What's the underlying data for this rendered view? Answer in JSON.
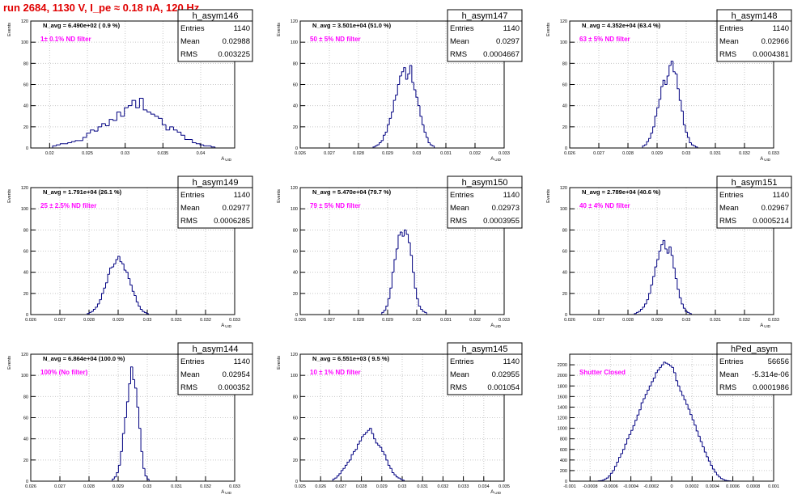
{
  "header": {
    "title": "run 2684,  1130 V, I_pe ≈ 0.18 nA, 120 Hz"
  },
  "colors": {
    "histogram_line": "#000080",
    "filter_text": "#ff00ff",
    "title_text": "#e00000",
    "grid": "#c8c8c8"
  },
  "chart_data": [
    {
      "type": "bar",
      "name": "h_asym146",
      "stats": {
        "entries_label": "Entries",
        "entries": "1140",
        "mean_label": "Mean",
        "mean": "0.02988",
        "rms_label": "RMS",
        "rms": "0.003225"
      },
      "n_avg": "N_avg = 6.490e+02 ( 0.9 %)",
      "filter": "1± 0.1% ND filter",
      "xlabel": "A_UID",
      "ylabel": "Events",
      "xlim": [
        0.0175,
        0.0445
      ],
      "ylim": [
        0,
        120
      ],
      "xticks": [
        0.02,
        0.025,
        0.03,
        0.035,
        0.04
      ],
      "xticklabels": [
        "0.02",
        "0.025",
        "0.03",
        "0.035",
        "0.04"
      ],
      "yticks": [
        0,
        20,
        40,
        60,
        80,
        100,
        120
      ],
      "hist": {
        "x0": 0.0204,
        "bin_width": 0.0005,
        "counts": [
          2,
          3,
          4,
          4,
          5,
          6,
          7,
          7,
          10,
          14,
          17,
          16,
          20,
          23,
          21,
          27,
          26,
          34,
          30,
          38,
          40,
          45,
          38,
          47,
          36,
          34,
          32,
          30,
          28,
          22,
          17,
          20,
          17,
          15,
          12,
          8,
          8,
          5,
          4,
          3,
          2,
          2,
          1
        ]
      }
    },
    {
      "type": "bar",
      "name": "h_asym147",
      "stats": {
        "entries_label": "Entries",
        "entries": "1140",
        "mean_label": "Mean",
        "mean": "0.0297",
        "rms_label": "RMS",
        "rms": "0.0004667"
      },
      "n_avg": "N_avg = 3.501e+04 (51.0 %)",
      "filter": "50 ± 5% ND filter",
      "xlabel": "A_UID",
      "ylabel": "Events",
      "xlim": [
        0.026,
        0.033
      ],
      "ylim": [
        0,
        120
      ],
      "xticks": [
        0.026,
        0.027,
        0.028,
        0.029,
        0.03,
        0.031,
        0.032,
        0.033
      ],
      "xticklabels": [
        "0.026",
        "0.027",
        "0.028",
        "0.029",
        "0.03",
        "0.031",
        "0.032",
        "0.033"
      ],
      "yticks": [
        0,
        20,
        40,
        60,
        80,
        100,
        120
      ],
      "hist": {
        "x0": 0.0285,
        "bin_width": 7e-05,
        "counts": [
          1,
          2,
          3,
          5,
          7,
          12,
          15,
          22,
          28,
          34,
          45,
          50,
          60,
          68,
          72,
          76,
          65,
          70,
          78,
          62,
          55,
          48,
          40,
          30,
          22,
          15,
          10,
          5,
          3,
          2
        ]
      }
    },
    {
      "type": "bar",
      "name": "h_asym148",
      "stats": {
        "entries_label": "Entries",
        "entries": "1140",
        "mean_label": "Mean",
        "mean": "0.02966",
        "rms_label": "RMS",
        "rms": "0.0004381"
      },
      "n_avg": "N_avg = 4.352e+04 (63.4 %)",
      "filter": "63 ± 5% ND filter",
      "xlabel": "A_UID",
      "ylabel": "Events",
      "xlim": [
        0.026,
        0.033
      ],
      "ylim": [
        0,
        120
      ],
      "xticks": [
        0.026,
        0.027,
        0.028,
        0.029,
        0.03,
        0.031,
        0.032,
        0.033
      ],
      "xticklabels": [
        "0.026",
        "0.027",
        "0.028",
        "0.029",
        "0.03",
        "0.031",
        "0.032",
        "0.033"
      ],
      "yticks": [
        0,
        20,
        40,
        60,
        80,
        100,
        120
      ],
      "hist": {
        "x0": 0.0285,
        "bin_width": 7e-05,
        "counts": [
          2,
          3,
          6,
          9,
          14,
          20,
          30,
          38,
          46,
          58,
          64,
          60,
          68,
          78,
          82,
          72,
          70,
          56,
          45,
          35,
          22,
          15,
          10,
          5,
          3,
          2,
          1
        ]
      }
    },
    {
      "type": "bar",
      "name": "h_asym149",
      "stats": {
        "entries_label": "Entries",
        "entries": "1140",
        "mean_label": "Mean",
        "mean": "0.02977",
        "rms_label": "RMS",
        "rms": "0.0006285"
      },
      "n_avg": "N_avg = 1.791e+04 (26.1 %)",
      "filter": "25 ± 2.5% ND filter",
      "xlabel": "A_UID",
      "ylabel": "Events",
      "xlim": [
        0.026,
        0.033
      ],
      "ylim": [
        0,
        120
      ],
      "xticks": [
        0.026,
        0.027,
        0.028,
        0.029,
        0.03,
        0.031,
        0.032,
        0.033
      ],
      "xticklabels": [
        "0.026",
        "0.027",
        "0.028",
        "0.029",
        "0.03",
        "0.031",
        "0.032",
        "0.033"
      ],
      "yticks": [
        0,
        20,
        40,
        60,
        80,
        100,
        120
      ],
      "hist": {
        "x0": 0.02794,
        "bin_width": 7e-05,
        "counts": [
          1,
          2,
          3,
          5,
          7,
          10,
          14,
          20,
          25,
          30,
          38,
          44,
          45,
          48,
          52,
          55,
          50,
          48,
          42,
          40,
          34,
          28,
          22,
          18,
          12,
          8,
          5,
          3,
          2,
          1
        ]
      }
    },
    {
      "type": "bar",
      "name": "h_asym150",
      "stats": {
        "entries_label": "Entries",
        "entries": "1140",
        "mean_label": "Mean",
        "mean": "0.02973",
        "rms_label": "RMS",
        "rms": "0.0003955"
      },
      "n_avg": "N_avg = 5.470e+04 (79.7 %)",
      "filter": "79 ± 5% ND filter",
      "xlabel": "A_UID",
      "ylabel": "Events",
      "xlim": [
        0.026,
        0.033
      ],
      "ylim": [
        0,
        120
      ],
      "xticks": [
        0.026,
        0.027,
        0.028,
        0.029,
        0.03,
        0.031,
        0.032,
        0.033
      ],
      "xticklabels": [
        "0.026",
        "0.027",
        "0.028",
        "0.029",
        "0.03",
        "0.031",
        "0.032",
        "0.033"
      ],
      "yticks": [
        0,
        20,
        40,
        60,
        80,
        100,
        120
      ],
      "hist": {
        "x0": 0.0288,
        "bin_width": 7e-05,
        "counts": [
          2,
          4,
          8,
          15,
          25,
          40,
          52,
          62,
          75,
          78,
          74,
          80,
          76,
          68,
          56,
          40,
          25,
          15,
          8,
          5,
          3,
          2
        ]
      }
    },
    {
      "type": "bar",
      "name": "h_asym151",
      "stats": {
        "entries_label": "Entries",
        "entries": "1140",
        "mean_label": "Mean",
        "mean": "0.02967",
        "rms_label": "RMS",
        "rms": "0.0005214"
      },
      "n_avg": "N_avg = 2.789e+04 (40.6 %)",
      "filter": "40 ± 4% ND filter",
      "xlabel": "A_UID",
      "ylabel": "Events",
      "xlim": [
        0.026,
        0.033
      ],
      "ylim": [
        0,
        120
      ],
      "xticks": [
        0.026,
        0.027,
        0.028,
        0.029,
        0.03,
        0.031,
        0.032,
        0.033
      ],
      "xticklabels": [
        "0.026",
        "0.027",
        "0.028",
        "0.029",
        "0.03",
        "0.031",
        "0.032",
        "0.033"
      ],
      "yticks": [
        0,
        20,
        40,
        60,
        80,
        100,
        120
      ],
      "hist": {
        "x0": 0.02822,
        "bin_width": 7e-05,
        "counts": [
          1,
          2,
          3,
          5,
          7,
          10,
          14,
          20,
          28,
          36,
          45,
          52,
          60,
          66,
          70,
          62,
          58,
          64,
          56,
          44,
          34,
          24,
          16,
          10,
          6,
          3,
          2,
          1
        ]
      }
    },
    {
      "type": "bar",
      "name": "h_asym144",
      "stats": {
        "entries_label": "Entries",
        "entries": "1140",
        "mean_label": "Mean",
        "mean": "0.02954",
        "rms_label": "RMS",
        "rms": "0.000352"
      },
      "n_avg": "N_avg = 6.864e+04 (100.0 %)",
      "filter": "100% (No filter)",
      "xlabel": "A_UID",
      "ylabel": "Events",
      "xlim": [
        0.026,
        0.033
      ],
      "ylim": [
        0,
        120
      ],
      "xticks": [
        0.026,
        0.027,
        0.028,
        0.029,
        0.03,
        0.031,
        0.032,
        0.033
      ],
      "xticklabels": [
        "0.026",
        "0.027",
        "0.028",
        "0.029",
        "0.03",
        "0.031",
        "0.032",
        "0.033"
      ],
      "yticks": [
        0,
        20,
        40,
        60,
        80,
        100,
        120
      ],
      "hist": {
        "x0": 0.0288,
        "bin_width": 7e-05,
        "counts": [
          2,
          4,
          8,
          15,
          28,
          45,
          60,
          75,
          92,
          108,
          96,
          88,
          70,
          50,
          28,
          12,
          5,
          2
        ]
      }
    },
    {
      "type": "bar",
      "name": "h_asym145",
      "stats": {
        "entries_label": "Entries",
        "entries": "1140",
        "mean_label": "Mean",
        "mean": "0.02955",
        "rms_label": "RMS",
        "rms": "0.001054"
      },
      "n_avg": "N_avg = 6.551e+03 ( 9.5 %)",
      "filter": "10 ± 1% ND filter",
      "xlabel": "A_UID",
      "ylabel": "Events",
      "xlim": [
        0.025,
        0.035
      ],
      "ylim": [
        0,
        120
      ],
      "xticks": [
        0.025,
        0.026,
        0.027,
        0.028,
        0.029,
        0.03,
        0.031,
        0.032,
        0.033,
        0.034,
        0.035
      ],
      "xticklabels": [
        "0.025",
        "0.026",
        "0.027",
        "0.028",
        "0.029",
        "0.03",
        "0.031",
        "0.032",
        "0.033",
        "0.034",
        "0.035"
      ],
      "yticks": [
        0,
        20,
        40,
        60,
        80,
        100,
        120
      ],
      "hist": {
        "x0": 0.0266,
        "bin_width": 0.0001,
        "counts": [
          2,
          3,
          5,
          7,
          10,
          12,
          15,
          18,
          20,
          25,
          28,
          30,
          35,
          38,
          42,
          44,
          46,
          48,
          50,
          45,
          40,
          36,
          34,
          32,
          28,
          25,
          20,
          15,
          12,
          8,
          6,
          4,
          3,
          2,
          1
        ]
      }
    },
    {
      "type": "bar",
      "name": "hPed_asym",
      "stats": {
        "entries_label": "Entries",
        "entries": "56656",
        "mean_label": "Mean",
        "mean": "-5.314e-06",
        "rms_label": "RMS",
        "rms": "0.0001986"
      },
      "n_avg": "",
      "filter": "Shutter Closed",
      "xlabel": "",
      "ylabel": "",
      "xlim": [
        -0.001,
        0.001
      ],
      "ylim": [
        0,
        2400
      ],
      "xticks": [
        -0.001,
        -0.0008,
        -0.0006,
        -0.0004,
        -0.0002,
        0,
        0.0002,
        0.0004,
        0.0006,
        0.0008,
        0.001
      ],
      "xticklabels": [
        "-0.001",
        "-0.0008",
        "-0.0006",
        "-0.0004",
        "-0.0002",
        "0",
        "0.0002",
        "0.0004",
        "0.0006",
        "0.0008",
        "0.001"
      ],
      "yticks": [
        0,
        200,
        400,
        600,
        800,
        1000,
        1200,
        1400,
        1600,
        1800,
        2000,
        2200
      ],
      "hist": {
        "x0": -0.00072,
        "bin_width": 2e-05,
        "counts": [
          5,
          10,
          20,
          40,
          60,
          100,
          150,
          200,
          280,
          360,
          450,
          520,
          600,
          700,
          800,
          880,
          960,
          1050,
          1150,
          1250,
          1350,
          1480,
          1560,
          1640,
          1720,
          1800,
          1880,
          1950,
          2050,
          2100,
          2150,
          2200,
          2250,
          2230,
          2210,
          2180,
          2150,
          2050,
          1900,
          1800,
          1700,
          1620,
          1540,
          1450,
          1360,
          1260,
          1160,
          1060,
          950,
          850,
          750,
          650,
          550,
          460,
          380,
          300,
          230,
          170,
          120,
          80,
          50,
          30,
          18,
          10,
          5,
          2
        ]
      }
    }
  ]
}
